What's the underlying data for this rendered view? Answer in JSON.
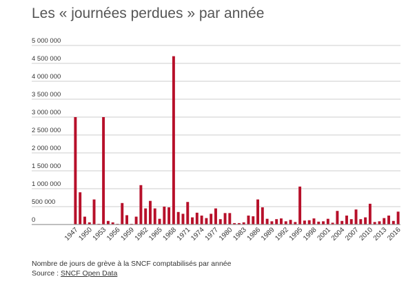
{
  "chart_data": {
    "type": "bar",
    "title": "Les « journées perdues » par année",
    "xlabel": "",
    "ylabel": "",
    "ylim": [
      0,
      5000000
    ],
    "grid": true,
    "colors": {
      "bar": "#b7102a",
      "grid": "#cccccc",
      "axis": "#999999"
    },
    "y_ticks": [
      {
        "value": 0,
        "label": "0"
      },
      {
        "value": 500000,
        "label": "500 000"
      },
      {
        "value": 1000000,
        "label": "1 000 000"
      },
      {
        "value": 1500000,
        "label": "1 500 000"
      },
      {
        "value": 2000000,
        "label": "2 000 000"
      },
      {
        "value": 2500000,
        "label": "2 500 000"
      },
      {
        "value": 3000000,
        "label": "3 000 000"
      },
      {
        "value": 3500000,
        "label": "3 500 000"
      },
      {
        "value": 4000000,
        "label": "4 000 000"
      },
      {
        "value": 4500000,
        "label": "4 500 000"
      },
      {
        "value": 5000000,
        "label": "5 000 000"
      }
    ],
    "x_tick_labels": [
      "1947",
      "1950",
      "1953",
      "1956",
      "1959",
      "1962",
      "1965",
      "1968",
      "1971",
      "1974",
      "1977",
      "1980",
      "1983",
      "1986",
      "1989",
      "1992",
      "1995",
      "1998",
      "2001",
      "2004",
      "2007",
      "2010",
      "2013",
      "2016"
    ],
    "categories": [
      1947,
      1948,
      1949,
      1950,
      1951,
      1952,
      1953,
      1954,
      1955,
      1956,
      1957,
      1958,
      1959,
      1960,
      1961,
      1962,
      1963,
      1964,
      1965,
      1966,
      1967,
      1968,
      1969,
      1970,
      1971,
      1972,
      1973,
      1974,
      1975,
      1976,
      1977,
      1978,
      1979,
      1980,
      1981,
      1982,
      1983,
      1984,
      1985,
      1986,
      1987,
      1988,
      1989,
      1990,
      1991,
      1992,
      1993,
      1994,
      1995,
      1996,
      1997,
      1998,
      1999,
      2000,
      2001,
      2002,
      2003,
      2004,
      2005,
      2006,
      2007,
      2008,
      2009,
      2010,
      2011,
      2012,
      2013,
      2014,
      2015,
      2016
    ],
    "values": [
      3000000,
      900000,
      220000,
      60000,
      700000,
      20000,
      3000000,
      100000,
      60000,
      20000,
      600000,
      260000,
      20000,
      220000,
      1100000,
      450000,
      660000,
      450000,
      160000,
      500000,
      480000,
      4700000,
      350000,
      300000,
      630000,
      200000,
      330000,
      250000,
      180000,
      300000,
      450000,
      150000,
      320000,
      320000,
      40000,
      40000,
      60000,
      250000,
      230000,
      700000,
      480000,
      160000,
      90000,
      150000,
      170000,
      90000,
      130000,
      70000,
      1060000,
      110000,
      120000,
      170000,
      80000,
      90000,
      160000,
      50000,
      380000,
      100000,
      250000,
      150000,
      420000,
      150000,
      200000,
      580000,
      70000,
      90000,
      180000,
      250000,
      100000,
      360000
    ]
  },
  "caption": "Nombre de jours de grève à la SNCF comptabilisés par année",
  "source_prefix": "Source : ",
  "source_link": "SNCF Open Data"
}
